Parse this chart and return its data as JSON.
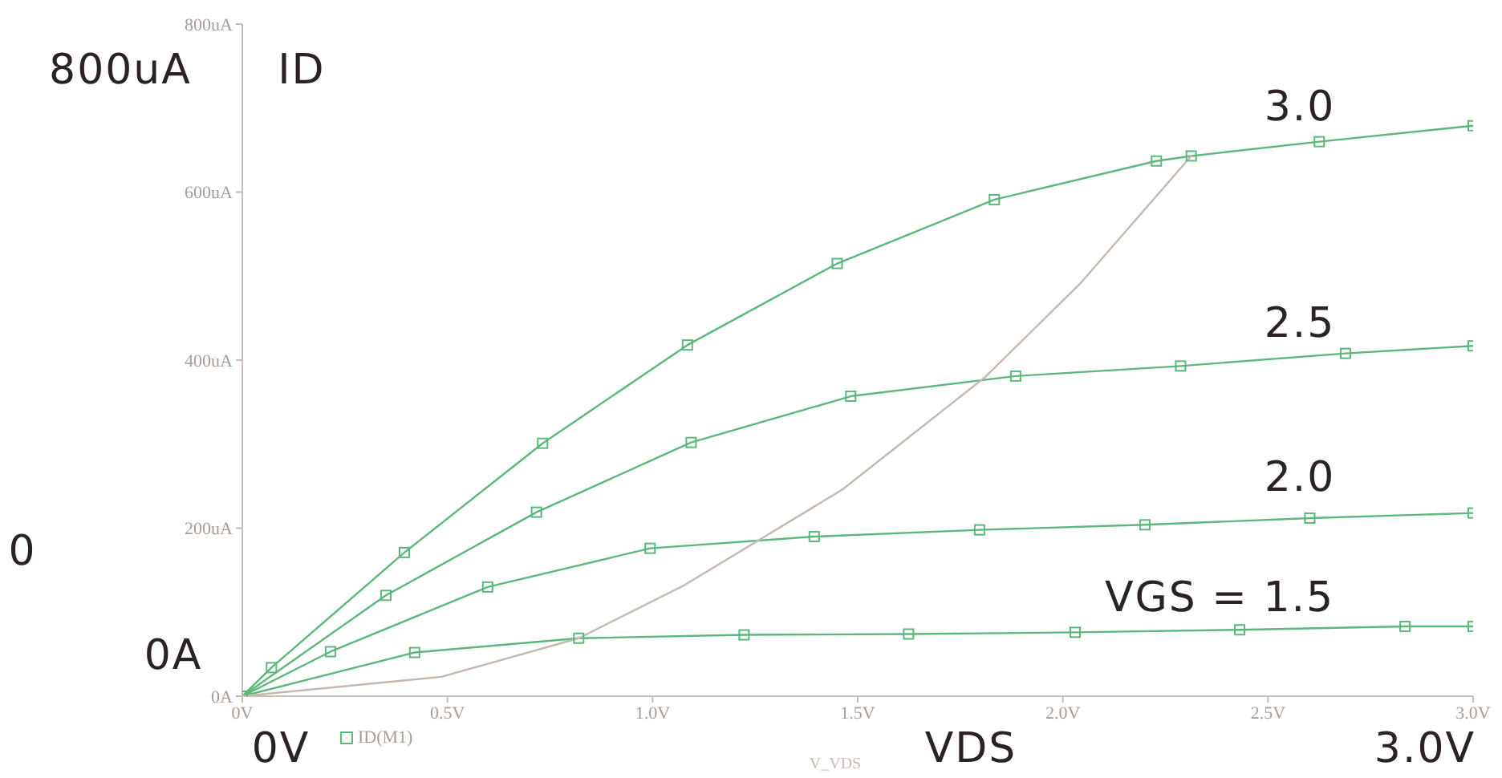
{
  "chart_data": {
    "type": "line",
    "ylabel": null,
    "xlabel": "V_VDS",
    "xlim": [
      0,
      3
    ],
    "xticks": [
      {
        "value": 0,
        "label": "0V"
      },
      {
        "value": 0.5,
        "label": "0.5V"
      },
      {
        "value": 1,
        "label": "1.0V"
      },
      {
        "value": 1.5,
        "label": "1.5V"
      },
      {
        "value": 2,
        "label": "2.0V"
      },
      {
        "value": 2.5,
        "label": "2.5V"
      },
      {
        "value": 3,
        "label": "3.0V"
      }
    ],
    "ylim": [
      0,
      800
    ],
    "yticks": [
      {
        "value": 0,
        "label": "0A"
      },
      {
        "value": 200,
        "label": "200uA"
      },
      {
        "value": 400,
        "label": "400uA"
      },
      {
        "value": 600,
        "label": "600uA"
      },
      {
        "value": 800,
        "label": "800uA"
      }
    ],
    "grid": false,
    "legend": "bottom left",
    "marker": "square",
    "line_style": "solid",
    "series": [
      {
        "name": "ID(M1)",
        "color": "#5cb87a",
        "x": [
          0,
          0.071,
          0.395,
          0.732,
          1.085,
          1.45,
          1.833,
          2.228,
          2.313,
          2.625,
          3.0
        ],
        "values": [
          0,
          34,
          171,
          301,
          418,
          515,
          591,
          637,
          643,
          660,
          679
        ]
      },
      {
        "color": "#5cb87a",
        "x": [
          0,
          0.35,
          0.717,
          1.094,
          1.483,
          1.885,
          2.287,
          2.689,
          3.0
        ],
        "values": [
          0,
          120,
          219,
          302,
          357,
          381,
          393,
          408,
          417
        ]
      },
      {
        "color": "#5cb87a",
        "x": [
          0,
          0.215,
          0.598,
          0.994,
          1.394,
          1.797,
          2.2,
          2.602,
          3.0
        ],
        "values": [
          0,
          53,
          130,
          176,
          190,
          198,
          204,
          212,
          218
        ]
      },
      {
        "color": "#5cb87a",
        "x": [
          0,
          0.42,
          0.82,
          1.223,
          1.624,
          2.03,
          2.431,
          2.834,
          3.0
        ],
        "values": [
          0,
          52,
          69,
          73,
          74,
          76,
          79,
          83,
          83
        ]
      },
      {
        "color": "#c4b8b0",
        "marker": "none",
        "x": [
          0,
          0.485,
          0.82,
          1.077,
          1.463,
          1.811,
          2.042,
          2.313
        ],
        "values": [
          0,
          23,
          69,
          132,
          246,
          380,
          491,
          643
        ]
      }
    ],
    "annotations": [
      "3.0",
      "2.5",
      "2.0",
      "VGS = 1.5",
      "800uA",
      "ID",
      "0A",
      "0V",
      "VDS",
      "3.0V",
      "0"
    ]
  }
}
